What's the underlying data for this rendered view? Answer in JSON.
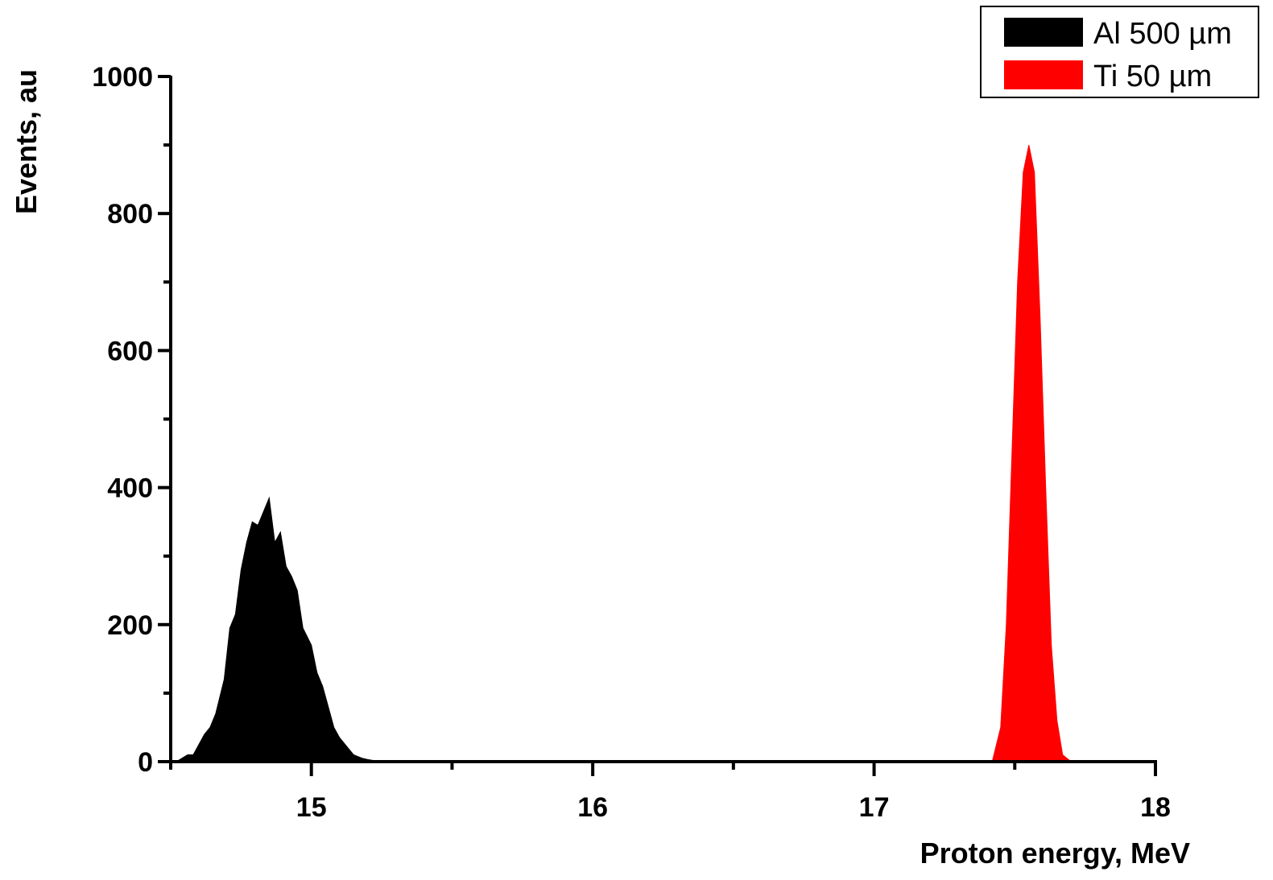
{
  "chart_data": {
    "type": "area",
    "title": "",
    "xlabel": "Proton energy, MeV",
    "ylabel": "Events, au",
    "xlim": [
      14.5,
      18
    ],
    "ylim": [
      0,
      1000
    ],
    "x_ticks": [
      15,
      16,
      17,
      18
    ],
    "x_tick_labels": [
      "15",
      "16",
      "17",
      "18"
    ],
    "y_ticks": [
      0,
      200,
      400,
      600,
      800,
      1000
    ],
    "y_tick_labels": [
      "0",
      "200",
      "400",
      "600",
      "800",
      "1000"
    ],
    "grid": false,
    "legend_position": "top-right",
    "series": [
      {
        "name": "Al 500 µm",
        "color": "#000000",
        "x": [
          14.52,
          14.56,
          14.58,
          14.62,
          14.64,
          14.66,
          14.69,
          14.71,
          14.73,
          14.75,
          14.77,
          14.79,
          14.81,
          14.83,
          14.85,
          14.87,
          14.89,
          14.91,
          14.93,
          14.95,
          14.97,
          15.0,
          15.02,
          15.04,
          15.06,
          15.08,
          15.1,
          15.13,
          15.15,
          15.18,
          15.2,
          15.23,
          15.25
        ],
        "y": [
          0,
          10,
          10,
          40,
          50,
          70,
          120,
          195,
          215,
          280,
          320,
          350,
          345,
          365,
          385,
          320,
          335,
          285,
          270,
          250,
          195,
          170,
          130,
          110,
          80,
          50,
          35,
          20,
          10,
          5,
          3,
          1,
          0
        ]
      },
      {
        "name": "Ti 50 µm",
        "color": "#ff0000",
        "x": [
          17.42,
          17.45,
          17.47,
          17.49,
          17.51,
          17.53,
          17.55,
          17.57,
          17.59,
          17.61,
          17.63,
          17.65,
          17.67,
          17.7
        ],
        "y": [
          0,
          50,
          200,
          450,
          700,
          860,
          900,
          860,
          650,
          400,
          170,
          60,
          10,
          0
        ]
      }
    ]
  }
}
